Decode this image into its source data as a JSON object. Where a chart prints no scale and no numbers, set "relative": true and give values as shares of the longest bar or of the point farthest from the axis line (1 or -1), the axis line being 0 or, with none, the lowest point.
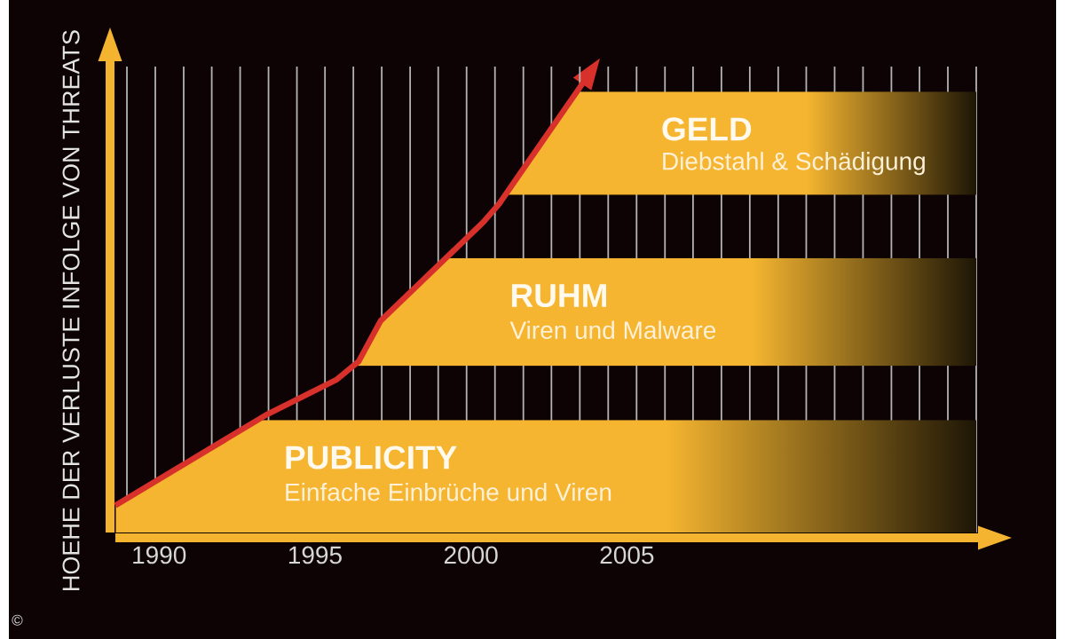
{
  "chart_data": {
    "type": "line",
    "relative": true,
    "ylabel": "HOEHE DER VERLUSTE INFOLGE VON THREATS",
    "x": [
      1988.6,
      1993.4,
      1995.7,
      1996.4,
      1997.1,
      2000.4,
      2000.9,
      2001.5,
      2003.6
    ],
    "series": [
      {
        "color": "#d8312b",
        "values": [
          0.06,
          0.26,
          0.34,
          0.38,
          0.47,
          0.69,
          0.73,
          0.79,
          1
        ]
      }
    ],
    "xlim": [
      1988.6,
      2016.2
    ],
    "xticks": [
      1990,
      1995,
      2000,
      2005
    ],
    "grid": true,
    "bands": [
      {
        "axis": "y",
        "from": 0,
        "to": 0.25,
        "label": "PUBLICITY",
        "color": "#f5b530"
      },
      {
        "axis": "y",
        "from": 0.37,
        "to": 0.61,
        "label": "RUHM",
        "color": "#f5b530"
      },
      {
        "axis": "y",
        "from": 0.75,
        "to": 0.98,
        "label": "GELD",
        "color": "#f5b530"
      }
    ],
    "annotations": [
      "Einfache Einbrüche und Viren",
      "Viren und Malware",
      "Diebstahl & Schädigung",
      "©"
    ]
  }
}
